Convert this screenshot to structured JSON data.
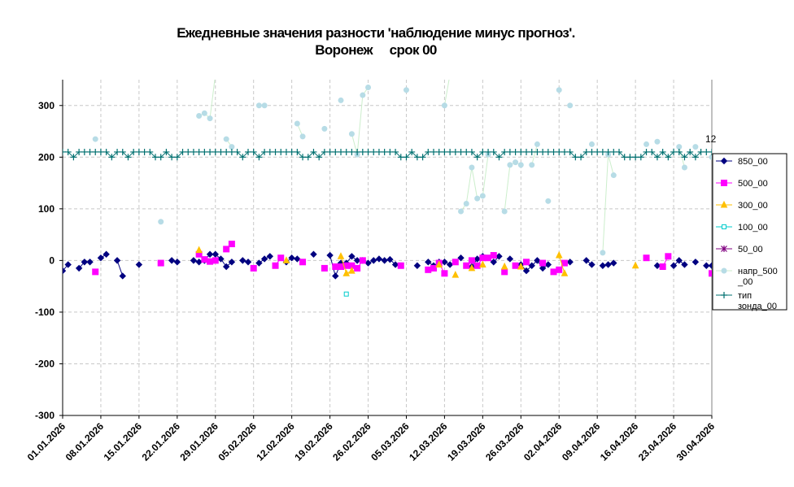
{
  "chart_data": {
    "type": "line",
    "title": "Ежедневные значения разности 'наблюдение минус прогноз'.",
    "subtitle": "Воронеж     срок 00",
    "xlabel": "",
    "ylabel": "",
    "ylim": [
      -300,
      350
    ],
    "y_ticks": [
      -300,
      -200,
      -100,
      0,
      100,
      200,
      300
    ],
    "x_range": [
      "2026-01-01",
      "2026-04-30"
    ],
    "x_tick_labels": [
      "01.01.2026",
      "08.01.2026",
      "15.01.2026",
      "22.01.2026",
      "29.01.2026",
      "05.02.2026",
      "12.02.2026",
      "19.02.2026",
      "26.02.2026",
      "05.03.2026",
      "12.03.2026",
      "19.03.2026",
      "26.03.2026",
      "02.04.2026",
      "09.04.2026",
      "16.04.2026",
      "23.04.2026",
      "30.04.2026"
    ],
    "grid": true,
    "legend_position": "right",
    "annotation": "12",
    "series": [
      {
        "name": "850_00",
        "color": "#000080",
        "marker": "diamond",
        "points": [
          [
            "2026-01-01",
            -20
          ],
          [
            "2026-01-02",
            -8
          ],
          [
            "2026-01-04",
            -15
          ],
          [
            "2026-01-05",
            -3
          ],
          [
            "2026-01-06",
            -3
          ],
          [
            "2026-01-08",
            5
          ],
          [
            "2026-01-09",
            12
          ],
          [
            "2026-01-11",
            0
          ],
          [
            "2026-01-12",
            -30
          ],
          [
            "2026-01-15",
            -8
          ],
          [
            "2026-01-21",
            0
          ],
          [
            "2026-01-22",
            -3
          ],
          [
            "2026-01-25",
            0
          ],
          [
            "2026-01-26",
            -3
          ],
          [
            "2026-01-27",
            0
          ],
          [
            "2026-01-28",
            12
          ],
          [
            "2026-01-29",
            12
          ],
          [
            "2026-01-30",
            3
          ],
          [
            "2026-01-31",
            -12
          ],
          [
            "2026-02-01",
            -3
          ],
          [
            "2026-02-03",
            0
          ],
          [
            "2026-02-04",
            -3
          ],
          [
            "2026-02-06",
            -5
          ],
          [
            "2026-02-07",
            3
          ],
          [
            "2026-02-08",
            8
          ],
          [
            "2026-02-11",
            -3
          ],
          [
            "2026-02-12",
            5
          ],
          [
            "2026-02-13",
            3
          ],
          [
            "2026-02-16",
            12
          ],
          [
            "2026-02-19",
            10
          ],
          [
            "2026-02-20",
            -30
          ],
          [
            "2026-02-21",
            -5
          ],
          [
            "2026-02-22",
            -5
          ],
          [
            "2026-02-23",
            8
          ],
          [
            "2026-02-24",
            0
          ],
          [
            "2026-02-25",
            0
          ],
          [
            "2026-02-26",
            -5
          ],
          [
            "2026-02-27",
            0
          ],
          [
            "2026-02-28",
            3
          ],
          [
            "2026-03-01",
            0
          ],
          [
            "2026-03-02",
            2
          ],
          [
            "2026-03-03",
            -8
          ],
          [
            "2026-03-07",
            -10
          ],
          [
            "2026-03-09",
            -3
          ],
          [
            "2026-03-10",
            -10
          ],
          [
            "2026-03-11",
            -3
          ],
          [
            "2026-03-12",
            -3
          ],
          [
            "2026-03-13",
            -8
          ],
          [
            "2026-03-15",
            5
          ],
          [
            "2026-03-17",
            -12
          ],
          [
            "2026-03-18",
            3
          ],
          [
            "2026-03-19",
            8
          ],
          [
            "2026-03-21",
            -3
          ],
          [
            "2026-03-22",
            8
          ],
          [
            "2026-03-24",
            3
          ],
          [
            "2026-03-26",
            -8
          ],
          [
            "2026-03-27",
            -20
          ],
          [
            "2026-03-28",
            -10
          ],
          [
            "2026-03-29",
            0
          ],
          [
            "2026-03-30",
            -15
          ],
          [
            "2026-03-31",
            -8
          ],
          [
            "2026-04-04",
            -3
          ],
          [
            "2026-04-07",
            0
          ],
          [
            "2026-04-08",
            -8
          ],
          [
            "2026-04-10",
            -10
          ],
          [
            "2026-04-11",
            -8
          ],
          [
            "2026-04-12",
            -5
          ],
          [
            "2026-04-20",
            -10
          ],
          [
            "2026-04-23",
            -10
          ],
          [
            "2026-04-24",
            0
          ],
          [
            "2026-04-25",
            -8
          ],
          [
            "2026-04-27",
            -3
          ],
          [
            "2026-04-29",
            -10
          ],
          [
            "2026-04-30",
            -10
          ]
        ]
      },
      {
        "name": "500_00",
        "color": "#FF00FF",
        "marker": "square",
        "points": [
          [
            "2026-01-07",
            -22
          ],
          [
            "2026-01-19",
            -5
          ],
          [
            "2026-01-26",
            12
          ],
          [
            "2026-01-27",
            2
          ],
          [
            "2026-01-28",
            -2
          ],
          [
            "2026-01-29",
            0
          ],
          [
            "2026-01-31",
            22
          ],
          [
            "2026-02-01",
            32
          ],
          [
            "2026-02-05",
            -15
          ],
          [
            "2026-02-09",
            -10
          ],
          [
            "2026-02-10",
            5
          ],
          [
            "2026-02-14",
            -3
          ],
          [
            "2026-02-18",
            -15
          ],
          [
            "2026-02-20",
            -12
          ],
          [
            "2026-02-21",
            -12
          ],
          [
            "2026-02-22",
            -10
          ],
          [
            "2026-02-23",
            -10
          ],
          [
            "2026-02-24",
            -15
          ],
          [
            "2026-02-25",
            0
          ],
          [
            "2026-03-04",
            -10
          ],
          [
            "2026-03-09",
            -18
          ],
          [
            "2026-03-10",
            -15
          ],
          [
            "2026-03-11",
            -5
          ],
          [
            "2026-03-12",
            -25
          ],
          [
            "2026-03-14",
            -3
          ],
          [
            "2026-03-16",
            -10
          ],
          [
            "2026-03-17",
            0
          ],
          [
            "2026-03-18",
            -10
          ],
          [
            "2026-03-19",
            5
          ],
          [
            "2026-03-20",
            5
          ],
          [
            "2026-03-21",
            10
          ],
          [
            "2026-03-23",
            -22
          ],
          [
            "2026-03-25",
            -10
          ],
          [
            "2026-03-27",
            -3
          ],
          [
            "2026-03-30",
            -5
          ],
          [
            "2026-04-01",
            -22
          ],
          [
            "2026-04-02",
            -18
          ],
          [
            "2026-04-03",
            -5
          ],
          [
            "2026-04-18",
            5
          ],
          [
            "2026-04-21",
            -12
          ],
          [
            "2026-04-22",
            8
          ],
          [
            "2026-04-30",
            -25
          ]
        ]
      },
      {
        "name": "300_00",
        "color": "#FFC000",
        "marker": "triangle",
        "points": [
          [
            "2026-01-26",
            20
          ],
          [
            "2026-02-11",
            0
          ],
          [
            "2026-02-21",
            8
          ],
          [
            "2026-02-22",
            -25
          ],
          [
            "2026-02-23",
            -20
          ],
          [
            "2026-03-11",
            -8
          ],
          [
            "2026-03-14",
            -28
          ],
          [
            "2026-03-17",
            -15
          ],
          [
            "2026-03-19",
            -8
          ],
          [
            "2026-03-23",
            -12
          ],
          [
            "2026-03-26",
            -12
          ],
          [
            "2026-04-02",
            10
          ],
          [
            "2026-04-03",
            -25
          ],
          [
            "2026-04-16",
            -10
          ]
        ]
      },
      {
        "name": "100_00",
        "color": "#00CCCC",
        "marker": "square-open",
        "points": [
          [
            "2026-02-22",
            -65
          ]
        ]
      },
      {
        "name": "50_00",
        "color": "#800080",
        "marker": "star",
        "points": []
      },
      {
        "name": "напр_500_00",
        "color": "#B7DCE6",
        "line_color": "#CCEECC",
        "marker": "circle",
        "points": [
          [
            "2026-01-07",
            235
          ],
          [
            "2026-01-19",
            75
          ],
          [
            "2026-01-26",
            280
          ],
          [
            "2026-01-27",
            285
          ],
          [
            "2026-01-28",
            275
          ],
          [
            "2026-01-29",
            360
          ],
          [
            "2026-01-31",
            235
          ],
          [
            "2026-02-01",
            220
          ],
          [
            "2026-02-06",
            300
          ],
          [
            "2026-02-07",
            300
          ],
          [
            "2026-02-13",
            265
          ],
          [
            "2026-02-14",
            240
          ],
          [
            "2026-02-18",
            255
          ],
          [
            "2026-02-21",
            310
          ],
          [
            "2026-02-23",
            245
          ],
          [
            "2026-02-24",
            205
          ],
          [
            "2026-02-25",
            320
          ],
          [
            "2026-02-26",
            335
          ],
          [
            "2026-03-05",
            330
          ],
          [
            "2026-03-12",
            300
          ],
          [
            "2026-03-13",
            360
          ],
          [
            "2026-03-15",
            95
          ],
          [
            "2026-03-16",
            110
          ],
          [
            "2026-03-17",
            180
          ],
          [
            "2026-03-18",
            120
          ],
          [
            "2026-03-19",
            125
          ],
          [
            "2026-03-20",
            205
          ],
          [
            "2026-03-23",
            95
          ],
          [
            "2026-03-24",
            185
          ],
          [
            "2026-03-25",
            190
          ],
          [
            "2026-03-26",
            185
          ],
          [
            "2026-03-28",
            185
          ],
          [
            "2026-03-29",
            225
          ],
          [
            "2026-03-31",
            115
          ],
          [
            "2026-04-02",
            330
          ],
          [
            "2026-04-04",
            300
          ],
          [
            "2026-04-08",
            225
          ],
          [
            "2026-04-10",
            15
          ],
          [
            "2026-04-11",
            205
          ],
          [
            "2026-04-12",
            165
          ],
          [
            "2026-04-18",
            225
          ],
          [
            "2026-04-20",
            230
          ],
          [
            "2026-04-24",
            220
          ],
          [
            "2026-04-25",
            180
          ],
          [
            "2026-04-27",
            220
          ],
          [
            "2026-04-30",
            200
          ]
        ]
      },
      {
        "name": "тип\nзонда_00",
        "color": "#007070",
        "marker": "plus",
        "pattern": "daily value 210 with dips to 200",
        "dips": [
          "2026-01-03",
          "2026-01-10",
          "2026-01-13",
          "2026-01-18",
          "2026-01-19",
          "2026-01-21",
          "2026-01-22",
          "2026-02-03",
          "2026-02-06",
          "2026-02-14",
          "2026-02-15",
          "2026-02-17",
          "2026-03-04",
          "2026-03-05",
          "2026-03-07",
          "2026-03-08",
          "2026-03-18",
          "2026-03-22",
          "2026-04-05",
          "2026-04-06",
          "2026-04-14",
          "2026-04-15",
          "2026-04-16",
          "2026-04-17",
          "2026-04-20",
          "2026-04-22",
          "2026-04-25",
          "2026-04-27"
        ]
      }
    ]
  }
}
